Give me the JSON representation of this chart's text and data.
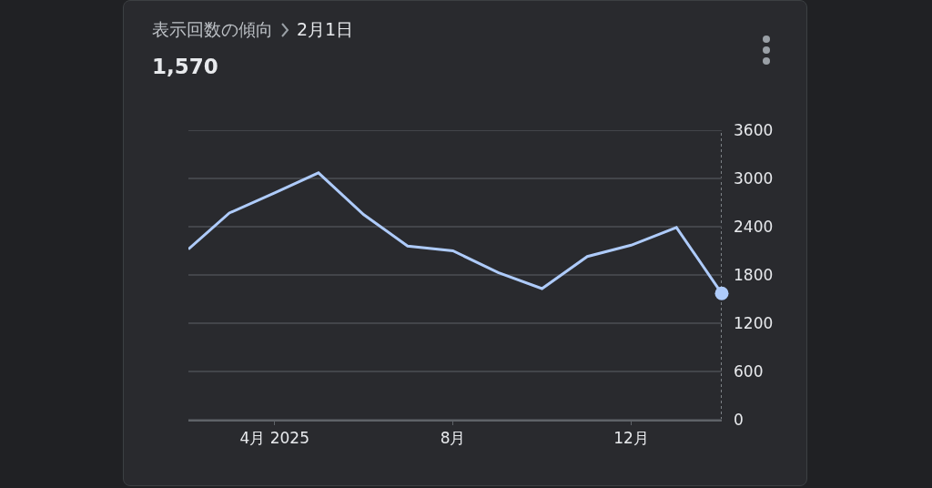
{
  "chart_data": {
    "type": "line",
    "title": "表示回数の傾向",
    "subtitle": "2月1日",
    "annotations": [
      "1,570"
    ],
    "x": [
      "2025-02-01",
      "2025-03-01",
      "2025-04-01",
      "2025-05-01",
      "2025-06-01",
      "2025-07-01",
      "2025-08-01",
      "2025-09-01",
      "2025-10-01",
      "2025-11-01",
      "2025-12-01",
      "2026-01-01",
      "2026-02-01"
    ],
    "series": [
      {
        "color": "#aecbfa",
        "values": [
          2120,
          2570,
          2820,
          3070,
          2550,
          2160,
          2100,
          1830,
          1630,
          2030,
          2170,
          2390,
          1570
        ]
      },
      {
        "type": "scatter",
        "color": "#aecbfa",
        "marker": "circle",
        "x": [
          "2026-02-01"
        ],
        "values": [
          1570
        ]
      }
    ],
    "xlim": [
      "2025-02-01",
      "2026-02-01"
    ],
    "xticks": [
      {
        "value": "2025-04-01",
        "label": "4月 2025"
      },
      {
        "value": "2025-08-01",
        "label": "8月"
      },
      {
        "value": "2025-12-01",
        "label": "12月"
      }
    ],
    "ylim": [
      0,
      3600
    ],
    "yticks": [
      0,
      600,
      1200,
      1800,
      2400,
      3000,
      3600
    ],
    "grid": "y",
    "marker": "none",
    "line_style": "solid",
    "ref_lines": [
      {
        "axis": "x",
        "value": "2026-02-01",
        "color": "#9aa0a6",
        "line_style": "dotted"
      }
    ]
  }
}
